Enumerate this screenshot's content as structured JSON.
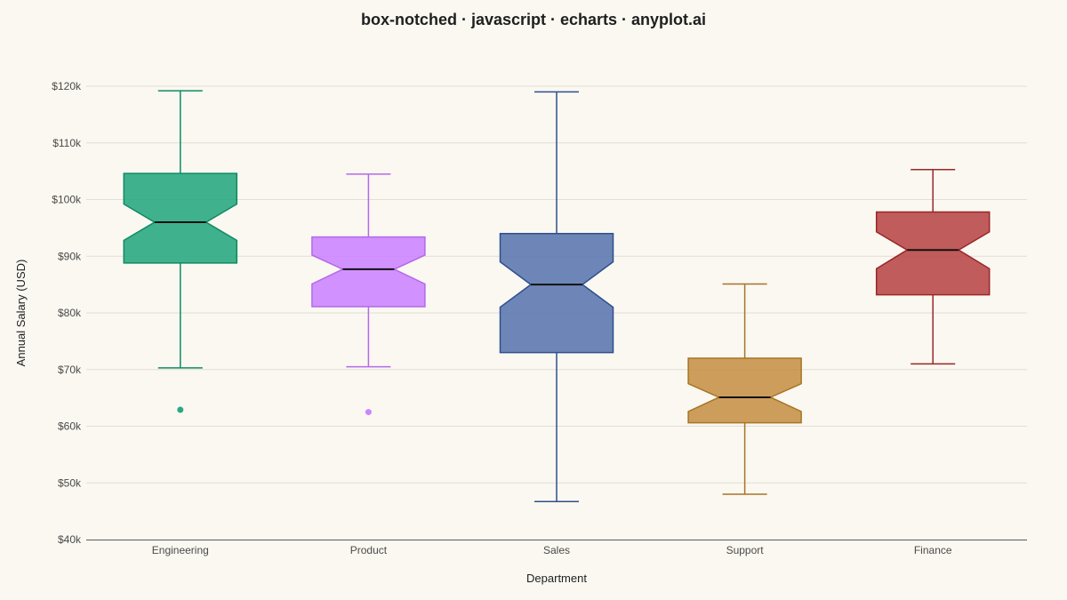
{
  "chart_data": {
    "type": "box",
    "title": "box-notched · javascript · echarts · anyplot.ai",
    "xlabel": "Department",
    "ylabel": "Annual Salary (USD)",
    "ylim": [
      40000,
      120000
    ],
    "yticks": [
      40000,
      50000,
      60000,
      70000,
      80000,
      90000,
      100000,
      110000,
      120000
    ],
    "ytick_labels": [
      "$40k",
      "$50k",
      "$60k",
      "$70k",
      "$80k",
      "$90k",
      "$100k",
      "$110k",
      "$120k"
    ],
    "grid": true,
    "categories": [
      "Engineering",
      "Product",
      "Sales",
      "Support",
      "Finance"
    ],
    "boxes": [
      {
        "category": "Engineering",
        "min": 70300,
        "q1": 88800,
        "median": 96000,
        "q3": 104600,
        "max": 119200,
        "notch_low": 92800,
        "notch_high": 99200,
        "outliers": [
          62900
        ],
        "color": "#2BA882",
        "stroke": "#0E8A63"
      },
      {
        "category": "Product",
        "min": 70500,
        "q1": 81100,
        "median": 87700,
        "q3": 93400,
        "max": 104500,
        "notch_low": 85100,
        "notch_high": 90200,
        "outliers": [
          62500
        ],
        "color": "#CC85FF",
        "stroke": "#B469E8"
      },
      {
        "category": "Sales",
        "min": 46700,
        "q1": 73000,
        "median": 85000,
        "q3": 94000,
        "max": 119000,
        "notch_low": 81000,
        "notch_high": 89000,
        "outliers": [],
        "color": "#5E79B0",
        "stroke": "#2E4F8F"
      },
      {
        "category": "Support",
        "min": 48000,
        "q1": 60600,
        "median": 65100,
        "q3": 72000,
        "max": 85100,
        "notch_low": 62600,
        "notch_high": 67500,
        "outliers": [],
        "color": "#C8924A",
        "stroke": "#A87424"
      },
      {
        "category": "Finance",
        "min": 71000,
        "q1": 83200,
        "median": 91100,
        "q3": 97800,
        "max": 105300,
        "notch_low": 87800,
        "notch_high": 94300,
        "outliers": [],
        "color": "#B94A4A",
        "stroke": "#9A2626"
      }
    ]
  }
}
